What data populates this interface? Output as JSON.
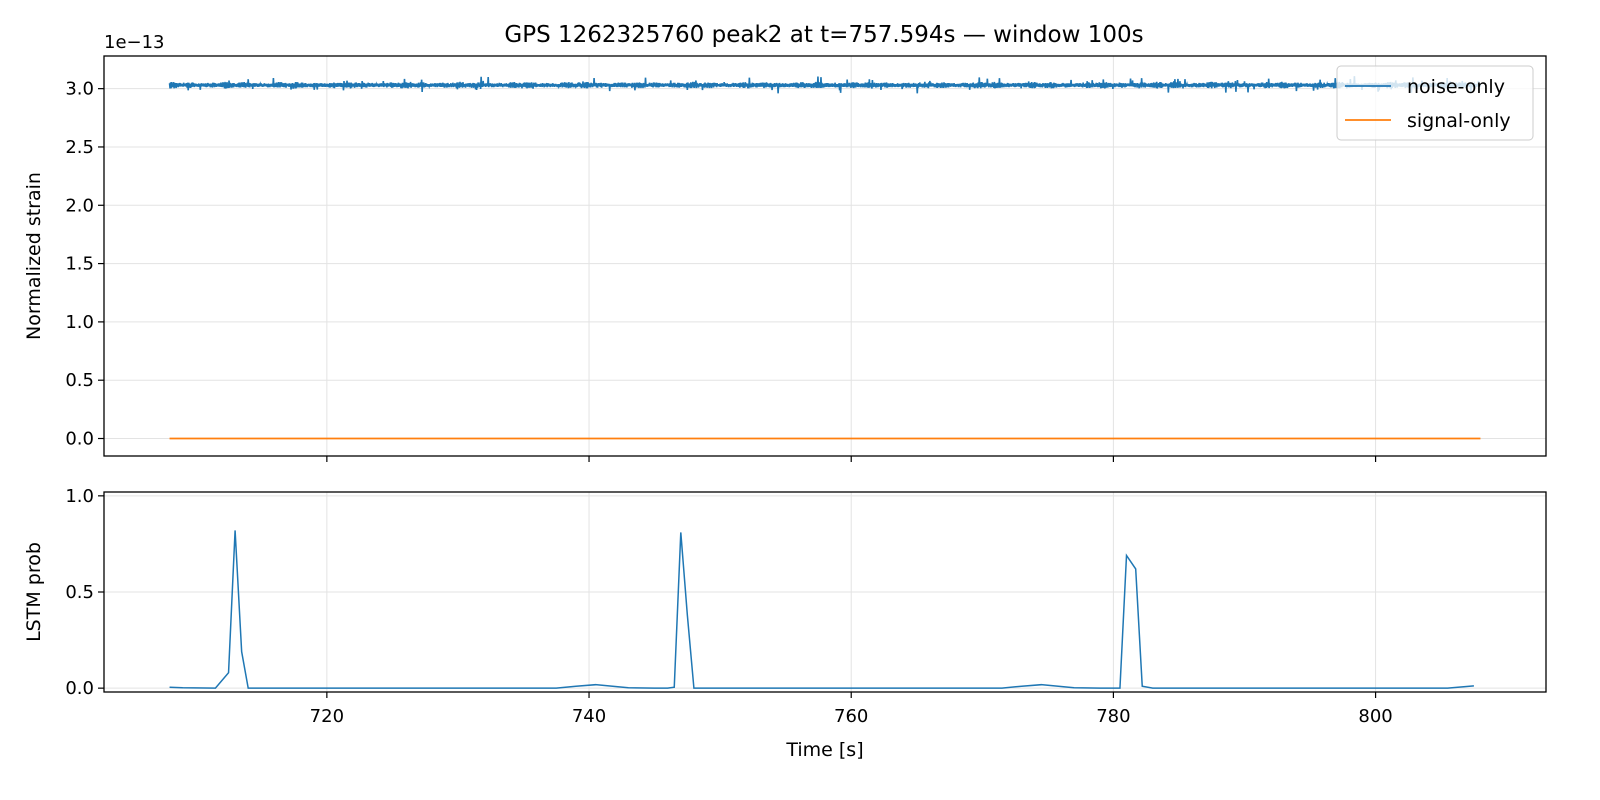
{
  "figure": {
    "title": "GPS 1262325760 peak2 at t=757.594s — window 100s"
  },
  "chart_data": [
    {
      "type": "line",
      "panel": "top",
      "ylabel": "Normalized strain",
      "xlabel": "",
      "offset_label": "1e−13",
      "xlim": [
        703,
        813
      ],
      "ylim": [
        -0.15,
        3.28
      ],
      "yticks": [
        0.0,
        0.5,
        1.0,
        1.5,
        2.0,
        2.5,
        3.0
      ],
      "ytick_labels": [
        "0.0",
        "0.5",
        "1.0",
        "1.5",
        "2.0",
        "2.5",
        "3.0"
      ],
      "xticks": [
        720,
        740,
        760,
        780,
        800
      ],
      "grid": true,
      "legend": {
        "placement": "upper right",
        "entries": [
          {
            "name": "noise-only",
            "color": "#1f77b4"
          },
          {
            "name": "signal-only",
            "color": "#ff7f0e"
          }
        ]
      },
      "series": [
        {
          "name": "noise-only",
          "color": "#1f77b4",
          "x_range": [
            708,
            808
          ],
          "baseline": 3.03,
          "typical_half_amplitude": 0.03,
          "max_half_amplitude": 0.08
        },
        {
          "name": "signal-only",
          "color": "#ff7f0e",
          "x": [
            708,
            808
          ],
          "y": [
            0.0,
            0.0
          ]
        }
      ]
    },
    {
      "type": "line",
      "panel": "bottom",
      "ylabel": "LSTM prob",
      "xlabel": "Time [s]",
      "xlim": [
        703,
        813
      ],
      "ylim": [
        -0.02,
        1.02
      ],
      "yticks": [
        0.0,
        0.5,
        1.0
      ],
      "ytick_labels": [
        "0.0",
        "0.5",
        "1.0"
      ],
      "xticks": [
        720,
        740,
        760,
        780,
        800
      ],
      "xtick_labels": [
        "720",
        "740",
        "760",
        "780",
        "800"
      ],
      "grid": true,
      "series": [
        {
          "name": "LSTM prob",
          "color": "#1f77b4",
          "x": [
            708.0,
            709.0,
            711.5,
            712.5,
            713.0,
            713.5,
            714.0,
            716.0,
            730.0,
            737.5,
            739.0,
            740.5,
            741.5,
            743.0,
            745.0,
            746.0,
            746.5,
            747.0,
            747.5,
            748.0,
            750.0,
            760.0,
            771.5,
            773.0,
            774.5,
            775.5,
            777.0,
            779.0,
            780.5,
            781.0,
            781.7,
            782.2,
            783.0,
            790.0,
            800.0,
            805.5,
            807.5
          ],
          "y": [
            0.005,
            0.002,
            0.0,
            0.08,
            0.82,
            0.19,
            0.0,
            0.0,
            0.0,
            0.0,
            0.01,
            0.018,
            0.012,
            0.002,
            0.0,
            0.0,
            0.005,
            0.81,
            0.38,
            0.0,
            0.0,
            0.0,
            0.0,
            0.01,
            0.018,
            0.012,
            0.002,
            0.0,
            0.0,
            0.69,
            0.62,
            0.01,
            0.0,
            0.0,
            0.0,
            0.0,
            0.012
          ]
        }
      ]
    }
  ]
}
